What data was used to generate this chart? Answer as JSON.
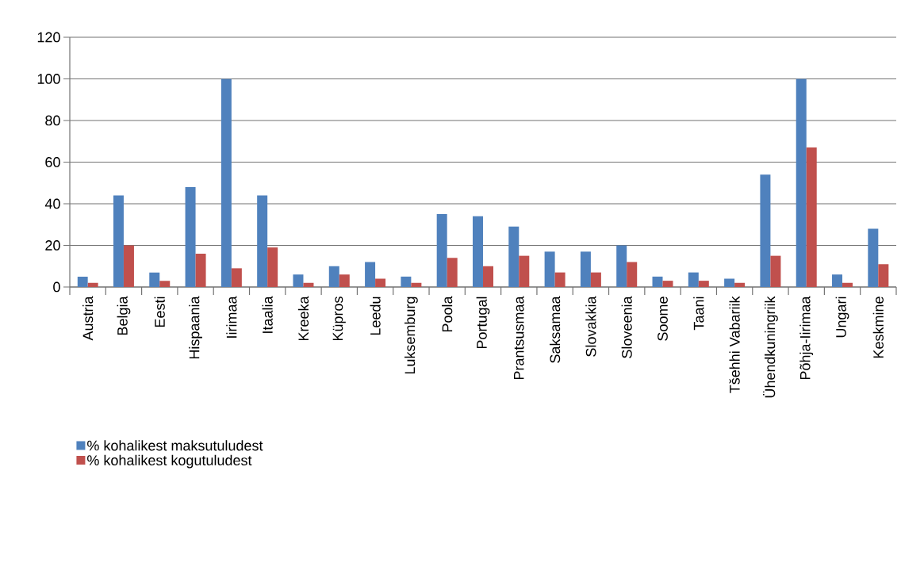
{
  "chart_data": {
    "type": "bar",
    "categories": [
      "Austria",
      "Belgia",
      "Eesti",
      "Hispaania",
      "Iirimaa",
      "Itaalia",
      "Kreeka",
      "Küpros",
      "Leedu",
      "Luksemburg",
      "Poola",
      "Portugal",
      "Prantsusmaa",
      "Saksamaa",
      "Slovakkia",
      "Sloveenia",
      "Soome",
      "Taani",
      "Tšehhi Vabariik",
      "Ühendkuningriik",
      "Põhja-Iirimaa",
      "Ungari",
      "Keskmine"
    ],
    "series": [
      {
        "name": "% kohalikest maksutuludest",
        "color": "#4f81bd",
        "values": [
          5,
          44,
          7,
          48,
          100,
          44,
          6,
          10,
          12,
          5,
          35,
          34,
          29,
          17,
          17,
          20,
          5,
          7,
          4,
          54,
          100,
          6,
          28
        ]
      },
      {
        "name": "% kohalikest kogutuludest",
        "color": "#c0504d",
        "values": [
          2,
          20,
          3,
          16,
          9,
          19,
          2,
          6,
          4,
          2,
          14,
          10,
          15,
          7,
          7,
          12,
          3,
          3,
          2,
          15,
          67,
          2,
          11
        ]
      }
    ],
    "ylim": [
      0,
      120
    ],
    "yticks": [
      0,
      20,
      40,
      60,
      80,
      100,
      120
    ],
    "grid": "y",
    "legend": "bottom left"
  }
}
